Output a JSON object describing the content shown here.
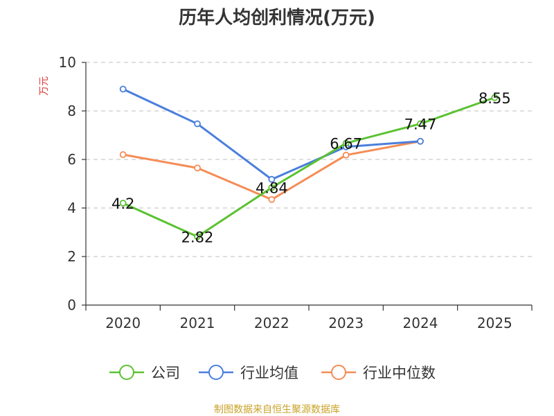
{
  "chart_data": {
    "type": "line",
    "title": "历年人均创利情况(万元)",
    "xlabel": "",
    "ylabel": "万元",
    "ylim": [
      0,
      10
    ],
    "yticks": [
      0,
      2,
      4,
      6,
      8,
      10
    ],
    "grid": true,
    "legend_position": "bottom",
    "categories": [
      "2020",
      "2021",
      "2022",
      "2023",
      "2024",
      "2025"
    ],
    "series": [
      {
        "name": "公司",
        "color": "#5ac231",
        "values": [
          4.2,
          2.82,
          4.84,
          6.67,
          7.47,
          8.55
        ],
        "labels": [
          "4.2",
          "2.82",
          "4.84",
          "6.67",
          "7.47",
          "8.55"
        ]
      },
      {
        "name": "行业均值",
        "color": "#4a7fdc",
        "values": [
          8.9,
          7.47,
          5.18,
          6.52,
          6.75,
          null
        ],
        "labels": null
      },
      {
        "name": "行业中位数",
        "color": "#f58c55",
        "values": [
          6.2,
          5.65,
          4.35,
          6.18,
          6.75,
          null
        ],
        "labels": null
      }
    ],
    "source": "制图数据来自恒生聚源数据库"
  },
  "colors": {
    "axis": "#333333",
    "grid": "#cccccc",
    "ylabel": "#e03a3a",
    "source": "#c9a227"
  }
}
